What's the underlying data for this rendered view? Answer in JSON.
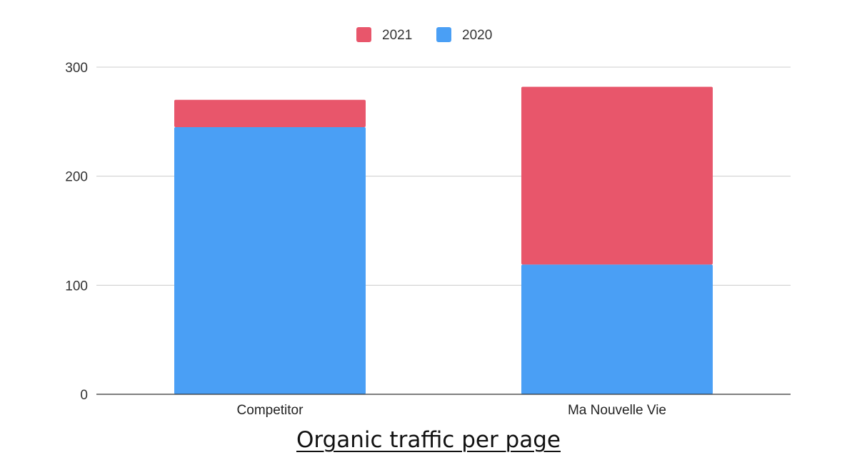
{
  "chart_data": {
    "type": "bar",
    "stacked": true,
    "title": "Organic traffic per page",
    "xlabel": "",
    "ylabel": "",
    "categories": [
      "Competitor",
      "Ma Nouvelle Vie"
    ],
    "series": [
      {
        "name": "2020",
        "values": [
          245,
          119
        ],
        "color": "#4a9ff5"
      },
      {
        "name": "2021",
        "values": [
          25,
          163
        ],
        "color": "#e8566b"
      }
    ],
    "ylim": [
      0,
      300
    ],
    "yticks": [
      0,
      100,
      200,
      300
    ],
    "grid": true,
    "legend": {
      "position": "top",
      "order": [
        "2021",
        "2020"
      ]
    }
  }
}
